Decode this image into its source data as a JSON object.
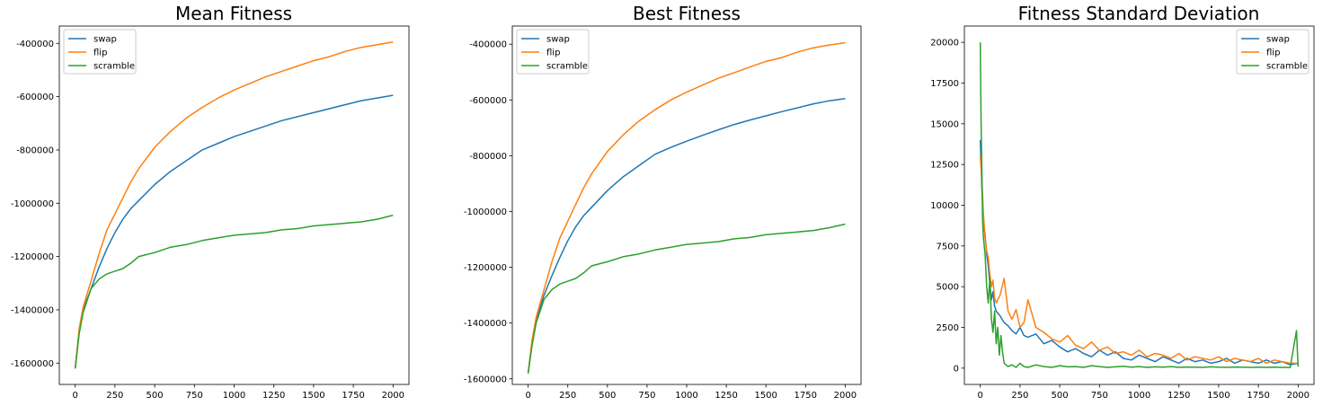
{
  "colors": {
    "swap": "#1f77b4",
    "flip": "#ff7f0e",
    "scramble": "#2ca02c"
  },
  "chart_data": [
    {
      "type": "line",
      "title": "Mean Fitness",
      "xlabel": "",
      "ylabel": "",
      "xlim": [
        -100,
        2100
      ],
      "ylim": [
        -1680000,
        -335000
      ],
      "xticks": [
        0,
        250,
        500,
        750,
        1000,
        1250,
        1500,
        1750,
        2000
      ],
      "yticks": [
        -1600000,
        -1400000,
        -1200000,
        -1000000,
        -800000,
        -600000,
        -400000
      ],
      "legend_position": "top-left",
      "series": [
        {
          "name": "swap",
          "x": [
            0,
            25,
            50,
            100,
            150,
            200,
            250,
            300,
            350,
            400,
            500,
            600,
            700,
            800,
            900,
            1000,
            1100,
            1200,
            1300,
            1400,
            1500,
            1600,
            1700,
            1800,
            1900,
            2000
          ],
          "y": [
            -1620000,
            -1480000,
            -1400000,
            -1320000,
            -1240000,
            -1170000,
            -1110000,
            -1060000,
            -1020000,
            -990000,
            -930000,
            -880000,
            -840000,
            -800000,
            -775000,
            -750000,
            -730000,
            -710000,
            -690000,
            -675000,
            -660000,
            -645000,
            -630000,
            -615000,
            -605000,
            -595000
          ]
        },
        {
          "name": "flip",
          "x": [
            0,
            25,
            50,
            100,
            150,
            200,
            250,
            300,
            350,
            400,
            500,
            600,
            700,
            800,
            900,
            1000,
            1100,
            1200,
            1300,
            1400,
            1500,
            1600,
            1700,
            1800,
            1900,
            2000
          ],
          "y": [
            -1620000,
            -1470000,
            -1390000,
            -1290000,
            -1190000,
            -1100000,
            -1040000,
            -980000,
            -920000,
            -870000,
            -790000,
            -730000,
            -680000,
            -640000,
            -605000,
            -575000,
            -550000,
            -525000,
            -505000,
            -485000,
            -465000,
            -450000,
            -430000,
            -415000,
            -405000,
            -395000
          ]
        },
        {
          "name": "scramble",
          "x": [
            0,
            25,
            50,
            100,
            150,
            200,
            250,
            300,
            350,
            400,
            500,
            600,
            700,
            800,
            900,
            1000,
            1100,
            1200,
            1300,
            1400,
            1500,
            1600,
            1700,
            1800,
            1900,
            2000
          ],
          "y": [
            -1620000,
            -1490000,
            -1410000,
            -1320000,
            -1285000,
            -1265000,
            -1255000,
            -1245000,
            -1225000,
            -1200000,
            -1185000,
            -1165000,
            -1155000,
            -1140000,
            -1130000,
            -1120000,
            -1115000,
            -1110000,
            -1100000,
            -1095000,
            -1085000,
            -1080000,
            -1075000,
            -1070000,
            -1060000,
            -1045000
          ]
        }
      ]
    },
    {
      "type": "line",
      "title": "Best Fitness",
      "xlabel": "",
      "ylabel": "",
      "xlim": [
        -100,
        2100
      ],
      "ylim": [
        -1620000,
        -335000
      ],
      "xticks": [
        0,
        250,
        500,
        750,
        1000,
        1250,
        1500,
        1750,
        2000
      ],
      "yticks": [
        -1600000,
        -1400000,
        -1200000,
        -1000000,
        -800000,
        -600000,
        -400000
      ],
      "legend_position": "top-left",
      "series": [
        {
          "name": "swap",
          "x": [
            0,
            25,
            50,
            100,
            150,
            200,
            250,
            300,
            350,
            400,
            500,
            600,
            700,
            800,
            900,
            1000,
            1100,
            1200,
            1300,
            1400,
            1500,
            1600,
            1700,
            1800,
            1900,
            2000
          ],
          "y": [
            -1580000,
            -1470000,
            -1390000,
            -1300000,
            -1230000,
            -1165000,
            -1105000,
            -1055000,
            -1015000,
            -985000,
            -925000,
            -875000,
            -835000,
            -795000,
            -770000,
            -748000,
            -727000,
            -707000,
            -688000,
            -672000,
            -657000,
            -642000,
            -628000,
            -614000,
            -603000,
            -595000
          ]
        },
        {
          "name": "flip",
          "x": [
            0,
            25,
            50,
            100,
            150,
            200,
            250,
            300,
            350,
            400,
            500,
            600,
            700,
            800,
            900,
            1000,
            1100,
            1200,
            1300,
            1400,
            1500,
            1600,
            1700,
            1800,
            1900,
            2000
          ],
          "y": [
            -1580000,
            -1460000,
            -1380000,
            -1280000,
            -1180000,
            -1095000,
            -1035000,
            -975000,
            -915000,
            -865000,
            -785000,
            -725000,
            -675000,
            -635000,
            -600000,
            -572000,
            -547000,
            -522000,
            -502000,
            -482000,
            -462000,
            -448000,
            -428000,
            -413000,
            -403000,
            -395000
          ]
        },
        {
          "name": "scramble",
          "x": [
            0,
            25,
            50,
            100,
            150,
            200,
            250,
            300,
            350,
            400,
            500,
            600,
            700,
            800,
            900,
            1000,
            1100,
            1200,
            1300,
            1400,
            1500,
            1600,
            1700,
            1800,
            1900,
            2000
          ],
          "y": [
            -1580000,
            -1480000,
            -1400000,
            -1315000,
            -1280000,
            -1260000,
            -1250000,
            -1240000,
            -1220000,
            -1195000,
            -1180000,
            -1162000,
            -1152000,
            -1138000,
            -1128000,
            -1118000,
            -1113000,
            -1108000,
            -1098000,
            -1093000,
            -1083000,
            -1078000,
            -1073000,
            -1068000,
            -1058000,
            -1045000
          ]
        }
      ]
    },
    {
      "type": "line",
      "title": "Fitness Standard Deviation",
      "xlabel": "",
      "ylabel": "",
      "xlim": [
        -100,
        2100
      ],
      "ylim": [
        -1000,
        21000
      ],
      "xticks": [
        0,
        250,
        500,
        750,
        1000,
        1250,
        1500,
        1750,
        2000
      ],
      "yticks": [
        0,
        2500,
        5000,
        7500,
        10000,
        12500,
        15000,
        17500,
        20000
      ],
      "legend_position": "top-right",
      "series": [
        {
          "name": "swap",
          "x": [
            0,
            10,
            20,
            30,
            40,
            50,
            60,
            70,
            80,
            90,
            100,
            125,
            150,
            175,
            200,
            225,
            250,
            275,
            300,
            350,
            400,
            450,
            500,
            550,
            600,
            650,
            700,
            750,
            800,
            850,
            900,
            950,
            1000,
            1050,
            1100,
            1150,
            1200,
            1250,
            1300,
            1350,
            1400,
            1450,
            1500,
            1550,
            1600,
            1650,
            1700,
            1750,
            1800,
            1850,
            1900,
            1950,
            2000
          ],
          "y": [
            14000,
            11000,
            9000,
            8200,
            7000,
            6300,
            5200,
            4200,
            4700,
            3800,
            3500,
            3200,
            2800,
            2600,
            2300,
            2100,
            2500,
            2000,
            1900,
            2100,
            1500,
            1700,
            1300,
            1000,
            1200,
            900,
            700,
            1100,
            800,
            1000,
            600,
            500,
            800,
            600,
            400,
            700,
            500,
            300,
            600,
            400,
            500,
            300,
            400,
            600,
            300,
            500,
            400,
            300,
            500,
            300,
            400,
            200,
            300
          ]
        },
        {
          "name": "flip",
          "x": [
            0,
            10,
            20,
            30,
            40,
            50,
            60,
            70,
            80,
            90,
            100,
            125,
            150,
            175,
            200,
            225,
            250,
            275,
            300,
            350,
            400,
            450,
            500,
            550,
            600,
            650,
            700,
            750,
            800,
            850,
            900,
            950,
            1000,
            1050,
            1100,
            1150,
            1200,
            1250,
            1300,
            1350,
            1400,
            1450,
            1500,
            1550,
            1600,
            1650,
            1700,
            1750,
            1800,
            1850,
            1900,
            1950,
            2000
          ],
          "y": [
            13000,
            11500,
            9500,
            8000,
            7200,
            6800,
            5800,
            5000,
            5400,
            4300,
            4000,
            4500,
            5500,
            3500,
            3000,
            3600,
            2500,
            2800,
            4200,
            2500,
            2200,
            1800,
            1600,
            2000,
            1400,
            1200,
            1600,
            1100,
            1300,
            900,
            1000,
            800,
            1100,
            700,
            900,
            800,
            600,
            900,
            500,
            700,
            600,
            500,
            700,
            400,
            600,
            500,
            400,
            600,
            300,
            500,
            400,
            300,
            300
          ]
        },
        {
          "name": "scramble",
          "x": [
            0,
            5,
            10,
            15,
            20,
            30,
            40,
            50,
            60,
            70,
            80,
            90,
            100,
            110,
            120,
            130,
            140,
            150,
            175,
            200,
            225,
            250,
            275,
            300,
            350,
            400,
            450,
            500,
            550,
            600,
            650,
            700,
            750,
            800,
            850,
            900,
            950,
            1000,
            1050,
            1100,
            1150,
            1200,
            1250,
            1300,
            1350,
            1400,
            1450,
            1500,
            1550,
            1600,
            1650,
            1700,
            1750,
            1800,
            1850,
            1900,
            1950,
            1990,
            2000
          ],
          "y": [
            20000,
            15000,
            12000,
            9000,
            8000,
            7000,
            5000,
            4000,
            5500,
            3000,
            2200,
            3500,
            1500,
            2500,
            800,
            2000,
            1000,
            300,
            100,
            200,
            50,
            300,
            100,
            50,
            200,
            100,
            50,
            150,
            80,
            100,
            50,
            150,
            100,
            50,
            80,
            120,
            60,
            100,
            50,
            80,
            60,
            100,
            50,
            70,
            60,
            50,
            80,
            60,
            50,
            70,
            60,
            50,
            60,
            50,
            60,
            50,
            40,
            2300,
            100
          ]
        }
      ]
    }
  ]
}
